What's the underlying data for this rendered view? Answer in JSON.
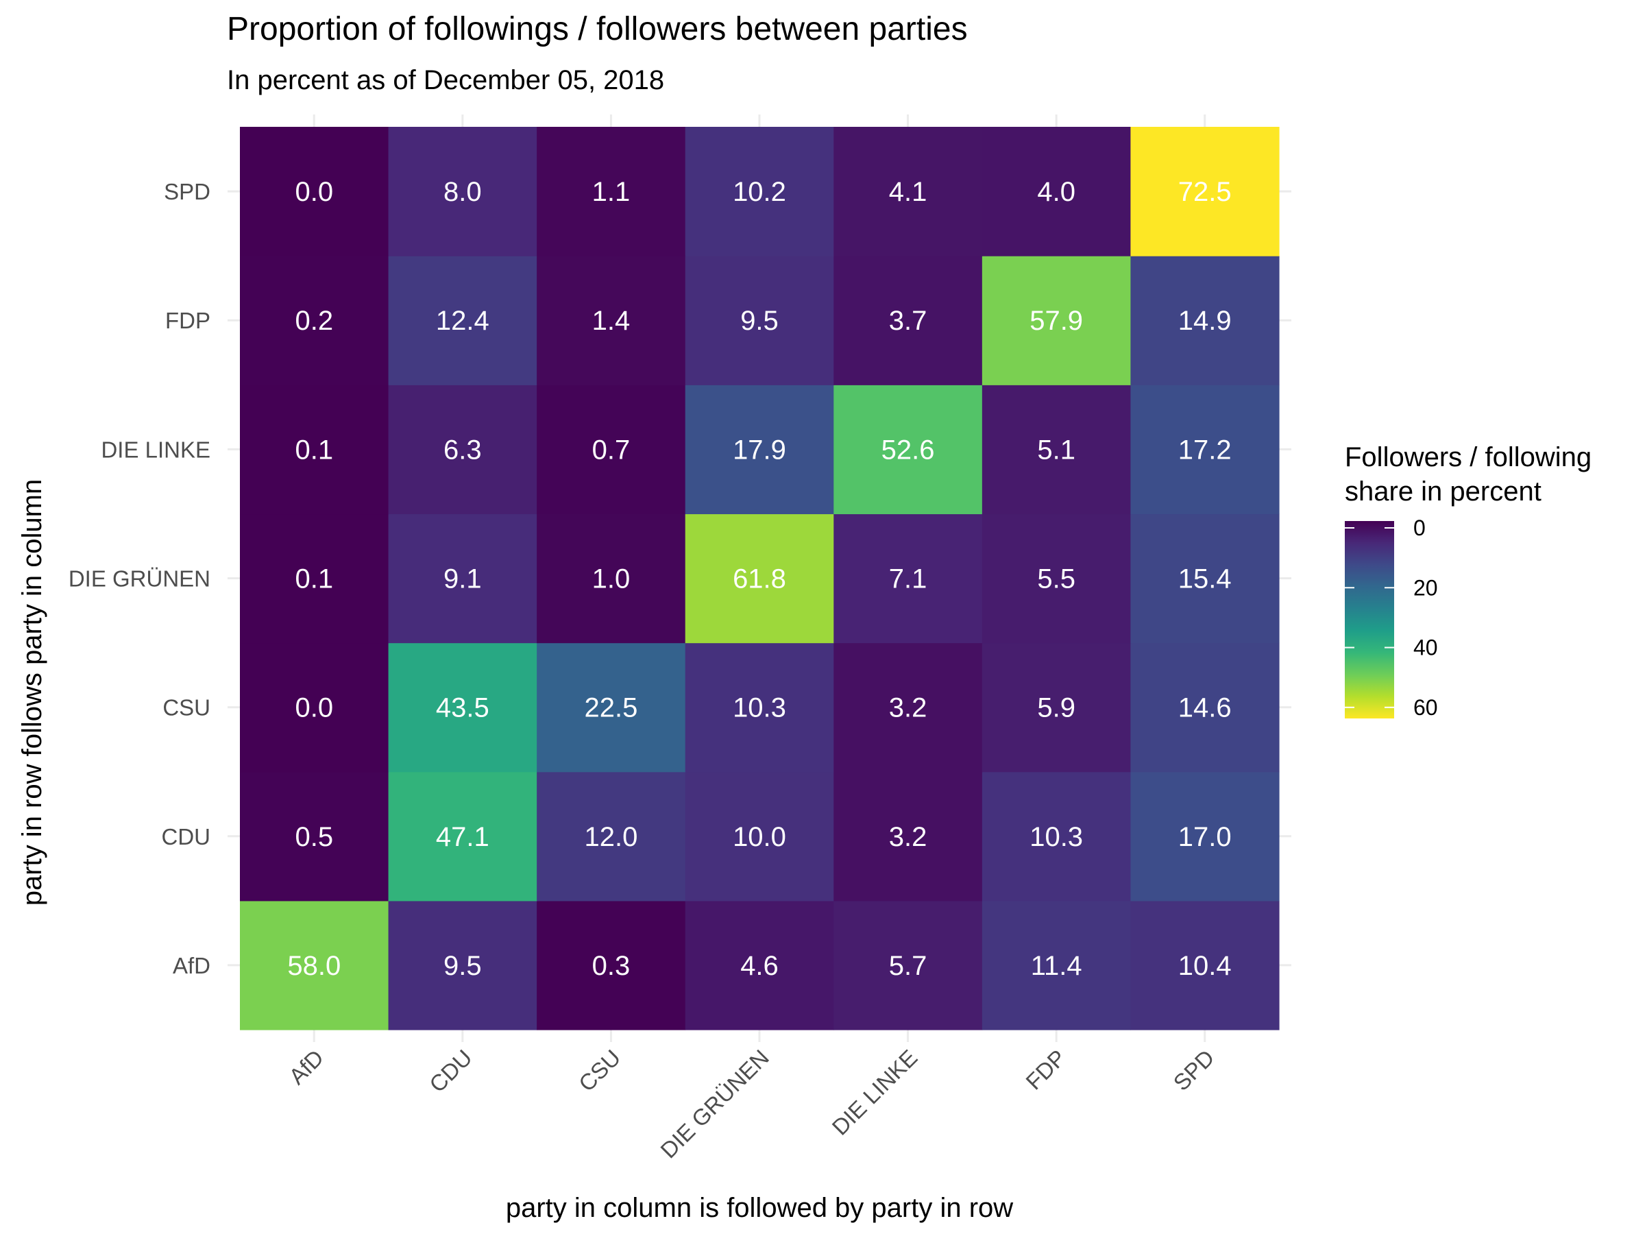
{
  "chart_data": {
    "type": "heatmap",
    "title": "Proportion of followings / followers between parties",
    "subtitle": "In percent as of December 05, 2018",
    "xlabel": "party in column is followed by party in row",
    "ylabel": "party in row follows party in column",
    "x_categories": [
      "AfD",
      "CDU",
      "CSU",
      "DIE GRÜNEN",
      "DIE LINKE",
      "FDP",
      "SPD"
    ],
    "y_categories": [
      "AfD",
      "CDU",
      "CSU",
      "DIE GRÜNEN",
      "DIE LINKE",
      "FDP",
      "SPD"
    ],
    "values": [
      [
        58.0,
        9.5,
        0.3,
        4.6,
        5.7,
        11.4,
        10.4
      ],
      [
        0.5,
        47.1,
        12.0,
        10.0,
        3.2,
        10.3,
        17.0
      ],
      [
        0.0,
        43.5,
        22.5,
        10.3,
        3.2,
        5.9,
        14.6
      ],
      [
        0.1,
        9.1,
        1.0,
        61.8,
        7.1,
        5.5,
        15.4
      ],
      [
        0.1,
        6.3,
        0.7,
        17.9,
        52.6,
        5.1,
        17.2
      ],
      [
        0.2,
        12.4,
        1.4,
        9.5,
        3.7,
        57.9,
        14.9
      ],
      [
        0.0,
        8.0,
        1.1,
        10.2,
        4.1,
        4.0,
        72.5
      ]
    ],
    "value_format": "one decimal",
    "color_scale": {
      "name": "viridis",
      "range": [
        0,
        72.5
      ],
      "stops": [
        "#440154",
        "#482878",
        "#3E4A89",
        "#31688E",
        "#26828E",
        "#1F9E89",
        "#35B779",
        "#6DCD59",
        "#B4DE2C",
        "#FDE725"
      ]
    },
    "legend": {
      "title_line1": "Followers / following",
      "title_line2": "share in percent",
      "breaks": [
        0,
        20,
        40,
        60
      ],
      "placement": "right"
    },
    "label_color": "#ffffff",
    "grid": true
  }
}
